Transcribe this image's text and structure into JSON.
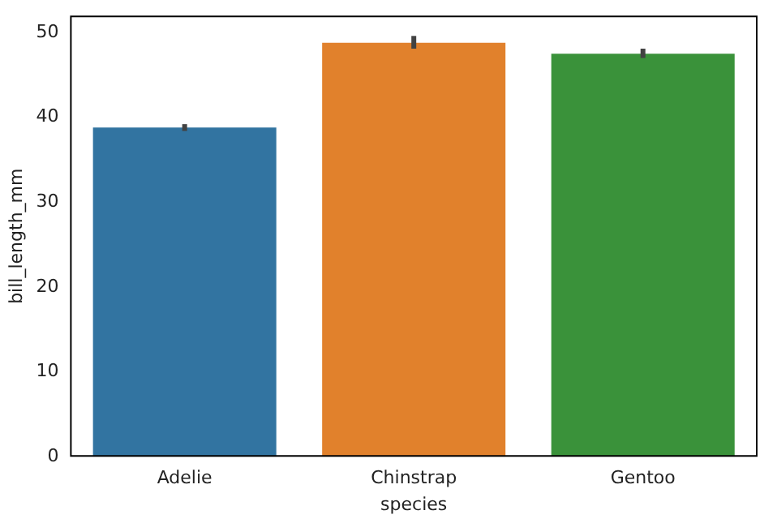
{
  "chart_data": {
    "type": "bar",
    "xlabel": "species",
    "ylabel": "bill_length_mm",
    "categories": [
      "Adelie",
      "Chinstrap",
      "Gentoo"
    ],
    "values": [
      38.8,
      48.8,
      47.5
    ],
    "colors": [
      "#3274a1",
      "#e1812c",
      "#3a923a"
    ],
    "errors": [
      [
        38.4,
        39.2
      ],
      [
        48.1,
        49.6
      ],
      [
        47.0,
        48.1
      ]
    ],
    "ylim": [
      0,
      52
    ],
    "yticks": [
      0,
      10,
      20,
      30,
      40,
      50
    ],
    "grid": false
  }
}
